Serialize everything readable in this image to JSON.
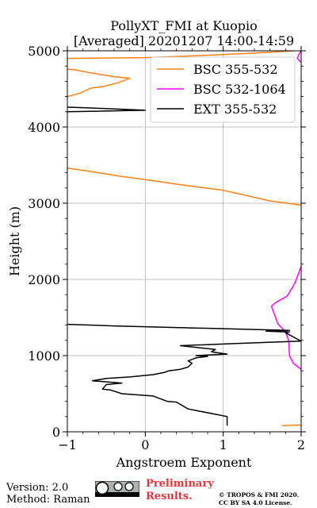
{
  "chart_data": {
    "type": "line",
    "title": "PollyXT_FMI at Kuopio",
    "subtitle": "[Averaged] 20201207 14:00-14:59",
    "xlabel": "Angstroem Exponent",
    "ylabel": "Height (m)",
    "xlim": [
      -1,
      2
    ],
    "ylim": [
      0,
      5000
    ],
    "x_ticks": [
      "−1",
      "0",
      "1",
      "2"
    ],
    "x_tick_values": [
      -1,
      0,
      1,
      2
    ],
    "y_ticks": [
      "0",
      "1000",
      "2000",
      "3000",
      "4000",
      "5000"
    ],
    "y_tick_values": [
      0,
      1000,
      2000,
      3000,
      4000,
      5000
    ],
    "grid": true,
    "legend_position": "top-right",
    "series": [
      {
        "name": "BSC 355-532",
        "color": "#ff7f0e",
        "segments": [
          [
            [
              1.75,
              80
            ],
            [
              2.0,
              90
            ]
          ],
          [
            [
              2.0,
              2975
            ],
            [
              1.6,
              3030
            ],
            [
              1.0,
              3170
            ],
            [
              0.4,
              3250
            ],
            [
              0.0,
              3310
            ],
            [
              -0.3,
              3350
            ],
            [
              -0.6,
              3400
            ],
            [
              -1.0,
              3460
            ]
          ],
          [
            [
              -1.0,
              4400
            ],
            [
              -0.85,
              4440
            ],
            [
              -0.7,
              4510
            ],
            [
              -0.55,
              4530
            ],
            [
              -0.35,
              4580
            ],
            [
              -0.2,
              4640
            ],
            [
              -0.4,
              4660
            ],
            [
              -0.7,
              4710
            ],
            [
              -0.9,
              4750
            ],
            [
              -1.0,
              4760
            ]
          ],
          [
            [
              -1.0,
              4900
            ],
            [
              0.0,
              4910
            ],
            [
              1.0,
              4950
            ],
            [
              1.6,
              4980
            ],
            [
              1.9,
              5000
            ]
          ]
        ]
      },
      {
        "name": "BSC 532-1064",
        "color": "#ff00ff",
        "segments": [
          [
            [
              2.0,
              820
            ],
            [
              1.9,
              900
            ],
            [
              1.85,
              1000
            ],
            [
              1.84,
              1200
            ],
            [
              1.8,
              1310
            ],
            [
              1.7,
              1420
            ],
            [
              1.65,
              1560
            ],
            [
              1.62,
              1650
            ],
            [
              1.68,
              1700
            ],
            [
              1.82,
              1780
            ],
            [
              1.92,
              1950
            ],
            [
              2.0,
              2170
            ]
          ],
          [
            [
              2.0,
              4850
            ],
            [
              1.95,
              4900
            ],
            [
              1.97,
              4950
            ],
            [
              2.0,
              5000
            ]
          ]
        ]
      },
      {
        "name": "EXT 355-532",
        "color": "#000000",
        "segments": [
          [
            [
              1.05,
              80
            ],
            [
              1.05,
              200
            ],
            [
              0.9,
              230
            ],
            [
              0.7,
              270
            ],
            [
              0.55,
              300
            ],
            [
              0.4,
              390
            ],
            [
              0.28,
              400
            ],
            [
              0.1,
              470
            ],
            [
              -0.3,
              500
            ],
            [
              -0.45,
              550
            ],
            [
              -0.55,
              560
            ],
            [
              -0.5,
              620
            ],
            [
              -0.3,
              640
            ],
            [
              -0.68,
              670
            ],
            [
              -0.5,
              700
            ],
            [
              -0.2,
              720
            ],
            [
              0.1,
              750
            ],
            [
              0.25,
              780
            ],
            [
              0.3,
              800
            ],
            [
              0.45,
              820
            ],
            [
              0.55,
              850
            ],
            [
              0.6,
              900
            ],
            [
              0.55,
              930
            ],
            [
              0.65,
              970
            ],
            [
              0.8,
              990
            ],
            [
              0.65,
              1000
            ],
            [
              1.05,
              1020
            ],
            [
              0.85,
              1050
            ],
            [
              0.9,
              1080
            ],
            [
              0.45,
              1130
            ],
            [
              1.2,
              1160
            ],
            [
              2.0,
              1190
            ],
            [
              1.8,
              1300
            ],
            [
              1.85,
              1310
            ],
            [
              1.55,
              1320
            ],
            [
              1.85,
              1330
            ],
            [
              1.5,
              1340
            ],
            [
              -0.4,
              1390
            ],
            [
              -1.0,
              1410
            ]
          ],
          [
            [
              -1.0,
              4200
            ],
            [
              0.0,
              4220
            ],
            [
              -0.7,
              4250
            ],
            [
              -1.0,
              4260
            ]
          ]
        ]
      }
    ]
  },
  "footer": {
    "version": "Version: 2.0",
    "method": "Method: Raman",
    "preliminary_line1": "Preliminary",
    "preliminary_line2": "Results.",
    "copyright_line1": "© TROPOS & FMI 2020.",
    "copyright_line2": "CC BY SA 4.0 License."
  }
}
